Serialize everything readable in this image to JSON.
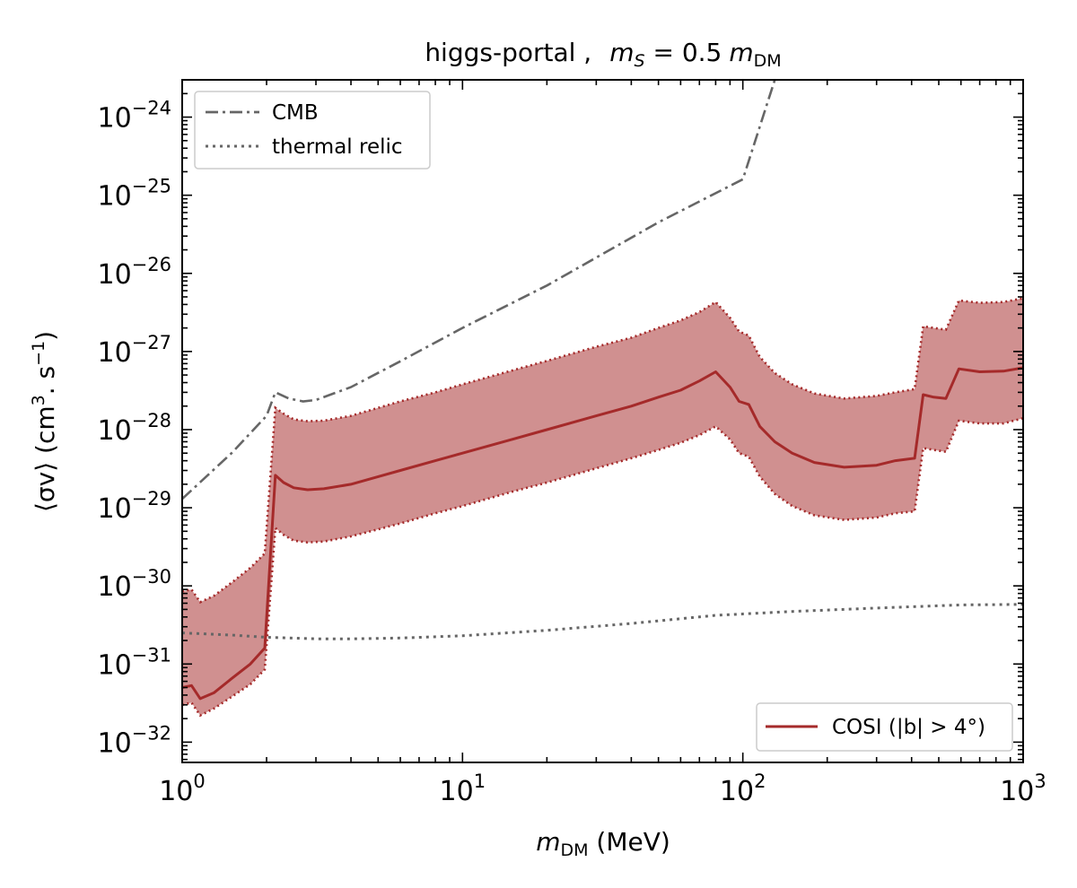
{
  "chart_data": {
    "type": "line",
    "title_prefix": "higgs-portal ,",
    "title_math": "m",
    "title_math_sub": "S",
    "title_eq": " = 0.5",
    "title_math2": "m",
    "title_math2_sub": "DM",
    "xlabel_math": "m",
    "xlabel_sub": "DM",
    "xlabel_unit": " (MeV)",
    "ylabel_lhs": "⟨σv⟩",
    "ylabel_unit_open": " (cm",
    "ylabel_exp1": "3",
    "ylabel_mid": ". s",
    "ylabel_exp2": "−1",
    "ylabel_close": ")",
    "xscale": "log",
    "yscale": "log",
    "xlim": [
      1,
      1000
    ],
    "ylim": [
      5.5e-33,
      3e-24
    ],
    "x_ticks": [
      {
        "value": 1,
        "base": "10",
        "exp": "0"
      },
      {
        "value": 10,
        "base": "10",
        "exp": "1"
      },
      {
        "value": 100,
        "base": "10",
        "exp": "2"
      },
      {
        "value": 1000,
        "base": "10",
        "exp": "3"
      }
    ],
    "y_ticks": [
      {
        "value": 1e-32,
        "base": "10",
        "exp": "−32"
      },
      {
        "value": 1e-31,
        "base": "10",
        "exp": "−31"
      },
      {
        "value": 1e-30,
        "base": "10",
        "exp": "−30"
      },
      {
        "value": 1e-29,
        "base": "10",
        "exp": "−29"
      },
      {
        "value": 1e-28,
        "base": "10",
        "exp": "−28"
      },
      {
        "value": 1e-27,
        "base": "10",
        "exp": "−27"
      },
      {
        "value": 1e-26,
        "base": "10",
        "exp": "−26"
      },
      {
        "value": 1e-25,
        "base": "10",
        "exp": "−25"
      },
      {
        "value": 1e-24,
        "base": "10",
        "exp": "−24"
      }
    ],
    "legend_upper": [
      {
        "label": "CMB",
        "style": "dashdot",
        "color": "#666666"
      },
      {
        "label": "thermal relic",
        "style": "dotted",
        "color": "#666666"
      }
    ],
    "legend_lower": [
      {
        "label": "COSI (|b| > 4°)",
        "style": "solid",
        "color": "#a52a2a"
      }
    ],
    "band_color": "#d09090",
    "line_color": "#a52a2a",
    "series": [
      {
        "name": "CMB",
        "x": [
          1.0,
          1.5,
          2.0,
          2.15,
          2.4,
          2.7,
          3.0,
          4.0,
          6.0,
          10.0,
          20.0,
          50.0,
          100.0,
          130.0
        ],
        "y": [
          1.3e-29,
          5e-29,
          1.5e-28,
          3e-28,
          2.5e-28,
          2.3e-28,
          2.4e-28,
          3.5e-28,
          7.5e-28,
          2e-27,
          7e-27,
          4.5e-26,
          1.6e-25,
          3e-24
        ]
      },
      {
        "name": "thermal relic",
        "x": [
          1.0,
          1.5,
          2.0,
          3.0,
          4.0,
          6.0,
          10.0,
          20.0,
          40.0,
          80.0,
          150.0,
          300.0,
          600.0,
          1000.0
        ],
        "y": [
          2.5e-31,
          2.35e-31,
          2.2e-31,
          2.1e-31,
          2.1e-31,
          2.15e-31,
          2.3e-31,
          2.7e-31,
          3.3e-31,
          4.2e-31,
          4.7e-31,
          5.2e-31,
          5.7e-31,
          5.8e-31
        ]
      },
      {
        "name": "COSI (|b| > 4°)",
        "x": [
          1.0,
          1.08,
          1.16,
          1.3,
          1.5,
          1.75,
          1.97,
          2.15,
          2.3,
          2.5,
          2.8,
          3.2,
          4.0,
          5.0,
          6.0,
          8.0,
          10.0,
          15.0,
          20.0,
          30.0,
          40.0,
          50.0,
          60.0,
          70.0,
          80.0,
          90.0,
          97.0,
          105.0,
          115.0,
          130.0,
          150.0,
          180.0,
          230.0,
          300.0,
          350.0,
          410.0,
          440.0,
          480.0,
          530.0,
          590.0,
          700.0,
          850.0,
          1000.0
        ],
        "y": [
          5e-32,
          5.3e-32,
          3.6e-32,
          4.3e-32,
          6.5e-32,
          1e-31,
          1.6e-31,
          2.6e-29,
          2.1e-29,
          1.8e-29,
          1.7e-29,
          1.75e-29,
          2e-29,
          2.5e-29,
          3e-29,
          4e-29,
          5e-29,
          7.5e-29,
          1e-28,
          1.5e-28,
          2e-28,
          2.6e-28,
          3.2e-28,
          4.2e-28,
          5.5e-28,
          3.5e-28,
          2.3e-28,
          2.1e-28,
          1.1e-28,
          7e-29,
          5e-29,
          3.8e-29,
          3.3e-29,
          3.5e-29,
          4e-29,
          4.3e-29,
          2.8e-28,
          2.6e-28,
          2.5e-28,
          6e-28,
          5.5e-28,
          5.6e-28,
          6.2e-28
        ],
        "band_lower": [
          3e-32,
          3.2e-32,
          2.2e-32,
          2.7e-32,
          3.8e-32,
          5.5e-32,
          8.5e-32,
          5.5e-30,
          4.5e-30,
          3.8e-30,
          3.6e-30,
          3.7e-30,
          4.3e-30,
          5.3e-30,
          6.3e-30,
          8.5e-30,
          1.05e-29,
          1.6e-29,
          2.1e-29,
          3.2e-29,
          4.3e-29,
          5.5e-29,
          6.8e-29,
          8.5e-29,
          1.1e-28,
          7.5e-29,
          5e-29,
          4.5e-29,
          2.5e-29,
          1.5e-29,
          1.05e-29,
          8e-30,
          7e-30,
          7.5e-30,
          8.5e-30,
          9e-30,
          5.8e-29,
          5.5e-29,
          5.2e-29,
          1.3e-28,
          1.2e-28,
          1.2e-28,
          1.4e-28
        ],
        "band_upper": [
          8.5e-31,
          9e-31,
          6.2e-31,
          7.5e-31,
          1.1e-30,
          1.7e-30,
          2.6e-30,
          1.9e-28,
          1.6e-28,
          1.35e-28,
          1.28e-28,
          1.3e-28,
          1.5e-28,
          1.9e-28,
          2.3e-28,
          3e-28,
          3.8e-28,
          5.7e-28,
          7.6e-28,
          1.15e-27,
          1.5e-27,
          2e-27,
          2.5e-27,
          3.2e-27,
          4.3e-27,
          2.7e-27,
          1.8e-27,
          1.6e-27,
          8.5e-28,
          5.3e-28,
          3.8e-28,
          2.9e-28,
          2.5e-28,
          2.7e-28,
          3e-28,
          3.3e-28,
          2.1e-27,
          2e-27,
          1.9e-27,
          4.5e-27,
          4.2e-27,
          4.3e-27,
          4.8e-27
        ]
      }
    ]
  }
}
